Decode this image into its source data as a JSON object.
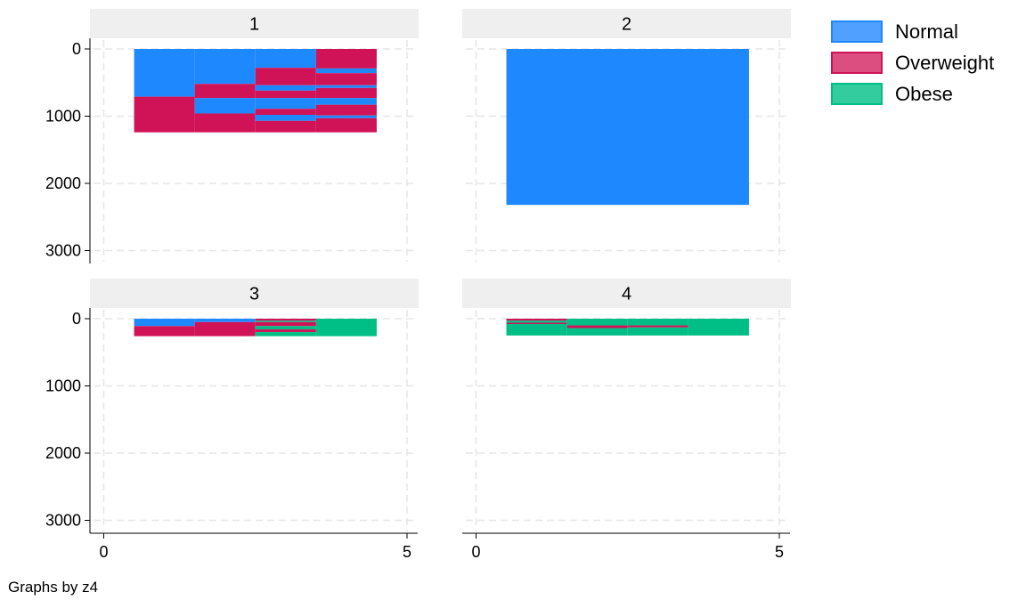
{
  "chart_data": {
    "type": "bar",
    "subtype": "stacked-spine-facets",
    "note": "Graphs by z4",
    "legend": {
      "placement": "right-top",
      "entries": [
        {
          "label": "Normal",
          "color": "#1E88FF",
          "fill": "#4FA0FF"
        },
        {
          "label": "Overweight",
          "color": "#D01257",
          "fill": "#DC4D80"
        },
        {
          "label": "Obese",
          "color": "#00BF86",
          "fill": "#33CC9E"
        }
      ]
    },
    "xlim": [
      -0.4,
      5.4
    ],
    "xticks": [
      0,
      5
    ],
    "ylim": [
      0,
      3150
    ],
    "yticks": [
      0,
      1000,
      2000,
      3000
    ],
    "grid": true,
    "panels": [
      {
        "label": "1",
        "columns": [
          {
            "x0": 0.5,
            "x1": 1.5,
            "segments": [
              {
                "from": 0,
                "to": 710,
                "series": 0
              },
              {
                "from": 710,
                "to": 1240,
                "series": 1
              }
            ]
          },
          {
            "x0": 1.5,
            "x1": 2.5,
            "segments": [
              {
                "from": 0,
                "to": 520,
                "series": 0
              },
              {
                "from": 520,
                "to": 730,
                "series": 1
              },
              {
                "from": 730,
                "to": 960,
                "series": 0
              },
              {
                "from": 960,
                "to": 1240,
                "series": 1
              }
            ]
          },
          {
            "x0": 2.5,
            "x1": 3.5,
            "segments": [
              {
                "from": 0,
                "to": 280,
                "series": 0
              },
              {
                "from": 280,
                "to": 540,
                "series": 1
              },
              {
                "from": 540,
                "to": 620,
                "series": 0
              },
              {
                "from": 620,
                "to": 730,
                "series": 1
              },
              {
                "from": 730,
                "to": 890,
                "series": 0
              },
              {
                "from": 890,
                "to": 980,
                "series": 1
              },
              {
                "from": 980,
                "to": 1070,
                "series": 0
              },
              {
                "from": 1070,
                "to": 1240,
                "series": 1
              }
            ]
          },
          {
            "x0": 3.5,
            "x1": 4.5,
            "segments": [
              {
                "from": 0,
                "to": 290,
                "series": 1
              },
              {
                "from": 290,
                "to": 360,
                "series": 0
              },
              {
                "from": 360,
                "to": 540,
                "series": 1
              },
              {
                "from": 540,
                "to": 580,
                "series": 0
              },
              {
                "from": 580,
                "to": 730,
                "series": 1
              },
              {
                "from": 730,
                "to": 830,
                "series": 0
              },
              {
                "from": 830,
                "to": 990,
                "series": 1
              },
              {
                "from": 990,
                "to": 1030,
                "series": 0
              },
              {
                "from": 1030,
                "to": 1240,
                "series": 1
              }
            ]
          }
        ]
      },
      {
        "label": "2",
        "columns": [
          {
            "x0": 0.5,
            "x1": 4.5,
            "segments": [
              {
                "from": 0,
                "to": 2320,
                "series": 0
              }
            ]
          }
        ]
      },
      {
        "label": "3",
        "columns": [
          {
            "x0": 0.5,
            "x1": 1.5,
            "segments": [
              {
                "from": 0,
                "to": 110,
                "series": 0
              },
              {
                "from": 110,
                "to": 260,
                "series": 1
              }
            ]
          },
          {
            "x0": 1.5,
            "x1": 2.5,
            "segments": [
              {
                "from": 0,
                "to": 50,
                "series": 0
              },
              {
                "from": 50,
                "to": 260,
                "series": 1
              }
            ]
          },
          {
            "x0": 2.5,
            "x1": 3.5,
            "segments": [
              {
                "from": 0,
                "to": 30,
                "series": 1
              },
              {
                "from": 30,
                "to": 50,
                "series": 2
              },
              {
                "from": 50,
                "to": 110,
                "series": 1
              },
              {
                "from": 110,
                "to": 160,
                "series": 2
              },
              {
                "from": 160,
                "to": 200,
                "series": 1
              },
              {
                "from": 200,
                "to": 260,
                "series": 2
              }
            ]
          },
          {
            "x0": 3.5,
            "x1": 4.5,
            "segments": [
              {
                "from": 0,
                "to": 260,
                "series": 2
              }
            ]
          }
        ]
      },
      {
        "label": "4",
        "columns": [
          {
            "x0": 0.5,
            "x1": 1.5,
            "segments": [
              {
                "from": 0,
                "to": 30,
                "series": 1
              },
              {
                "from": 30,
                "to": 60,
                "series": 2
              },
              {
                "from": 60,
                "to": 80,
                "series": 1
              },
              {
                "from": 80,
                "to": 250,
                "series": 2
              }
            ]
          },
          {
            "x0": 1.5,
            "x1": 2.5,
            "segments": [
              {
                "from": 0,
                "to": 100,
                "series": 2
              },
              {
                "from": 100,
                "to": 140,
                "series": 1
              },
              {
                "from": 140,
                "to": 250,
                "series": 2
              }
            ]
          },
          {
            "x0": 2.5,
            "x1": 3.5,
            "segments": [
              {
                "from": 0,
                "to": 100,
                "series": 2
              },
              {
                "from": 100,
                "to": 130,
                "series": 1
              },
              {
                "from": 130,
                "to": 250,
                "series": 2
              }
            ]
          },
          {
            "x0": 3.5,
            "x1": 4.5,
            "segments": [
              {
                "from": 0,
                "to": 250,
                "series": 2
              }
            ]
          }
        ]
      }
    ]
  }
}
